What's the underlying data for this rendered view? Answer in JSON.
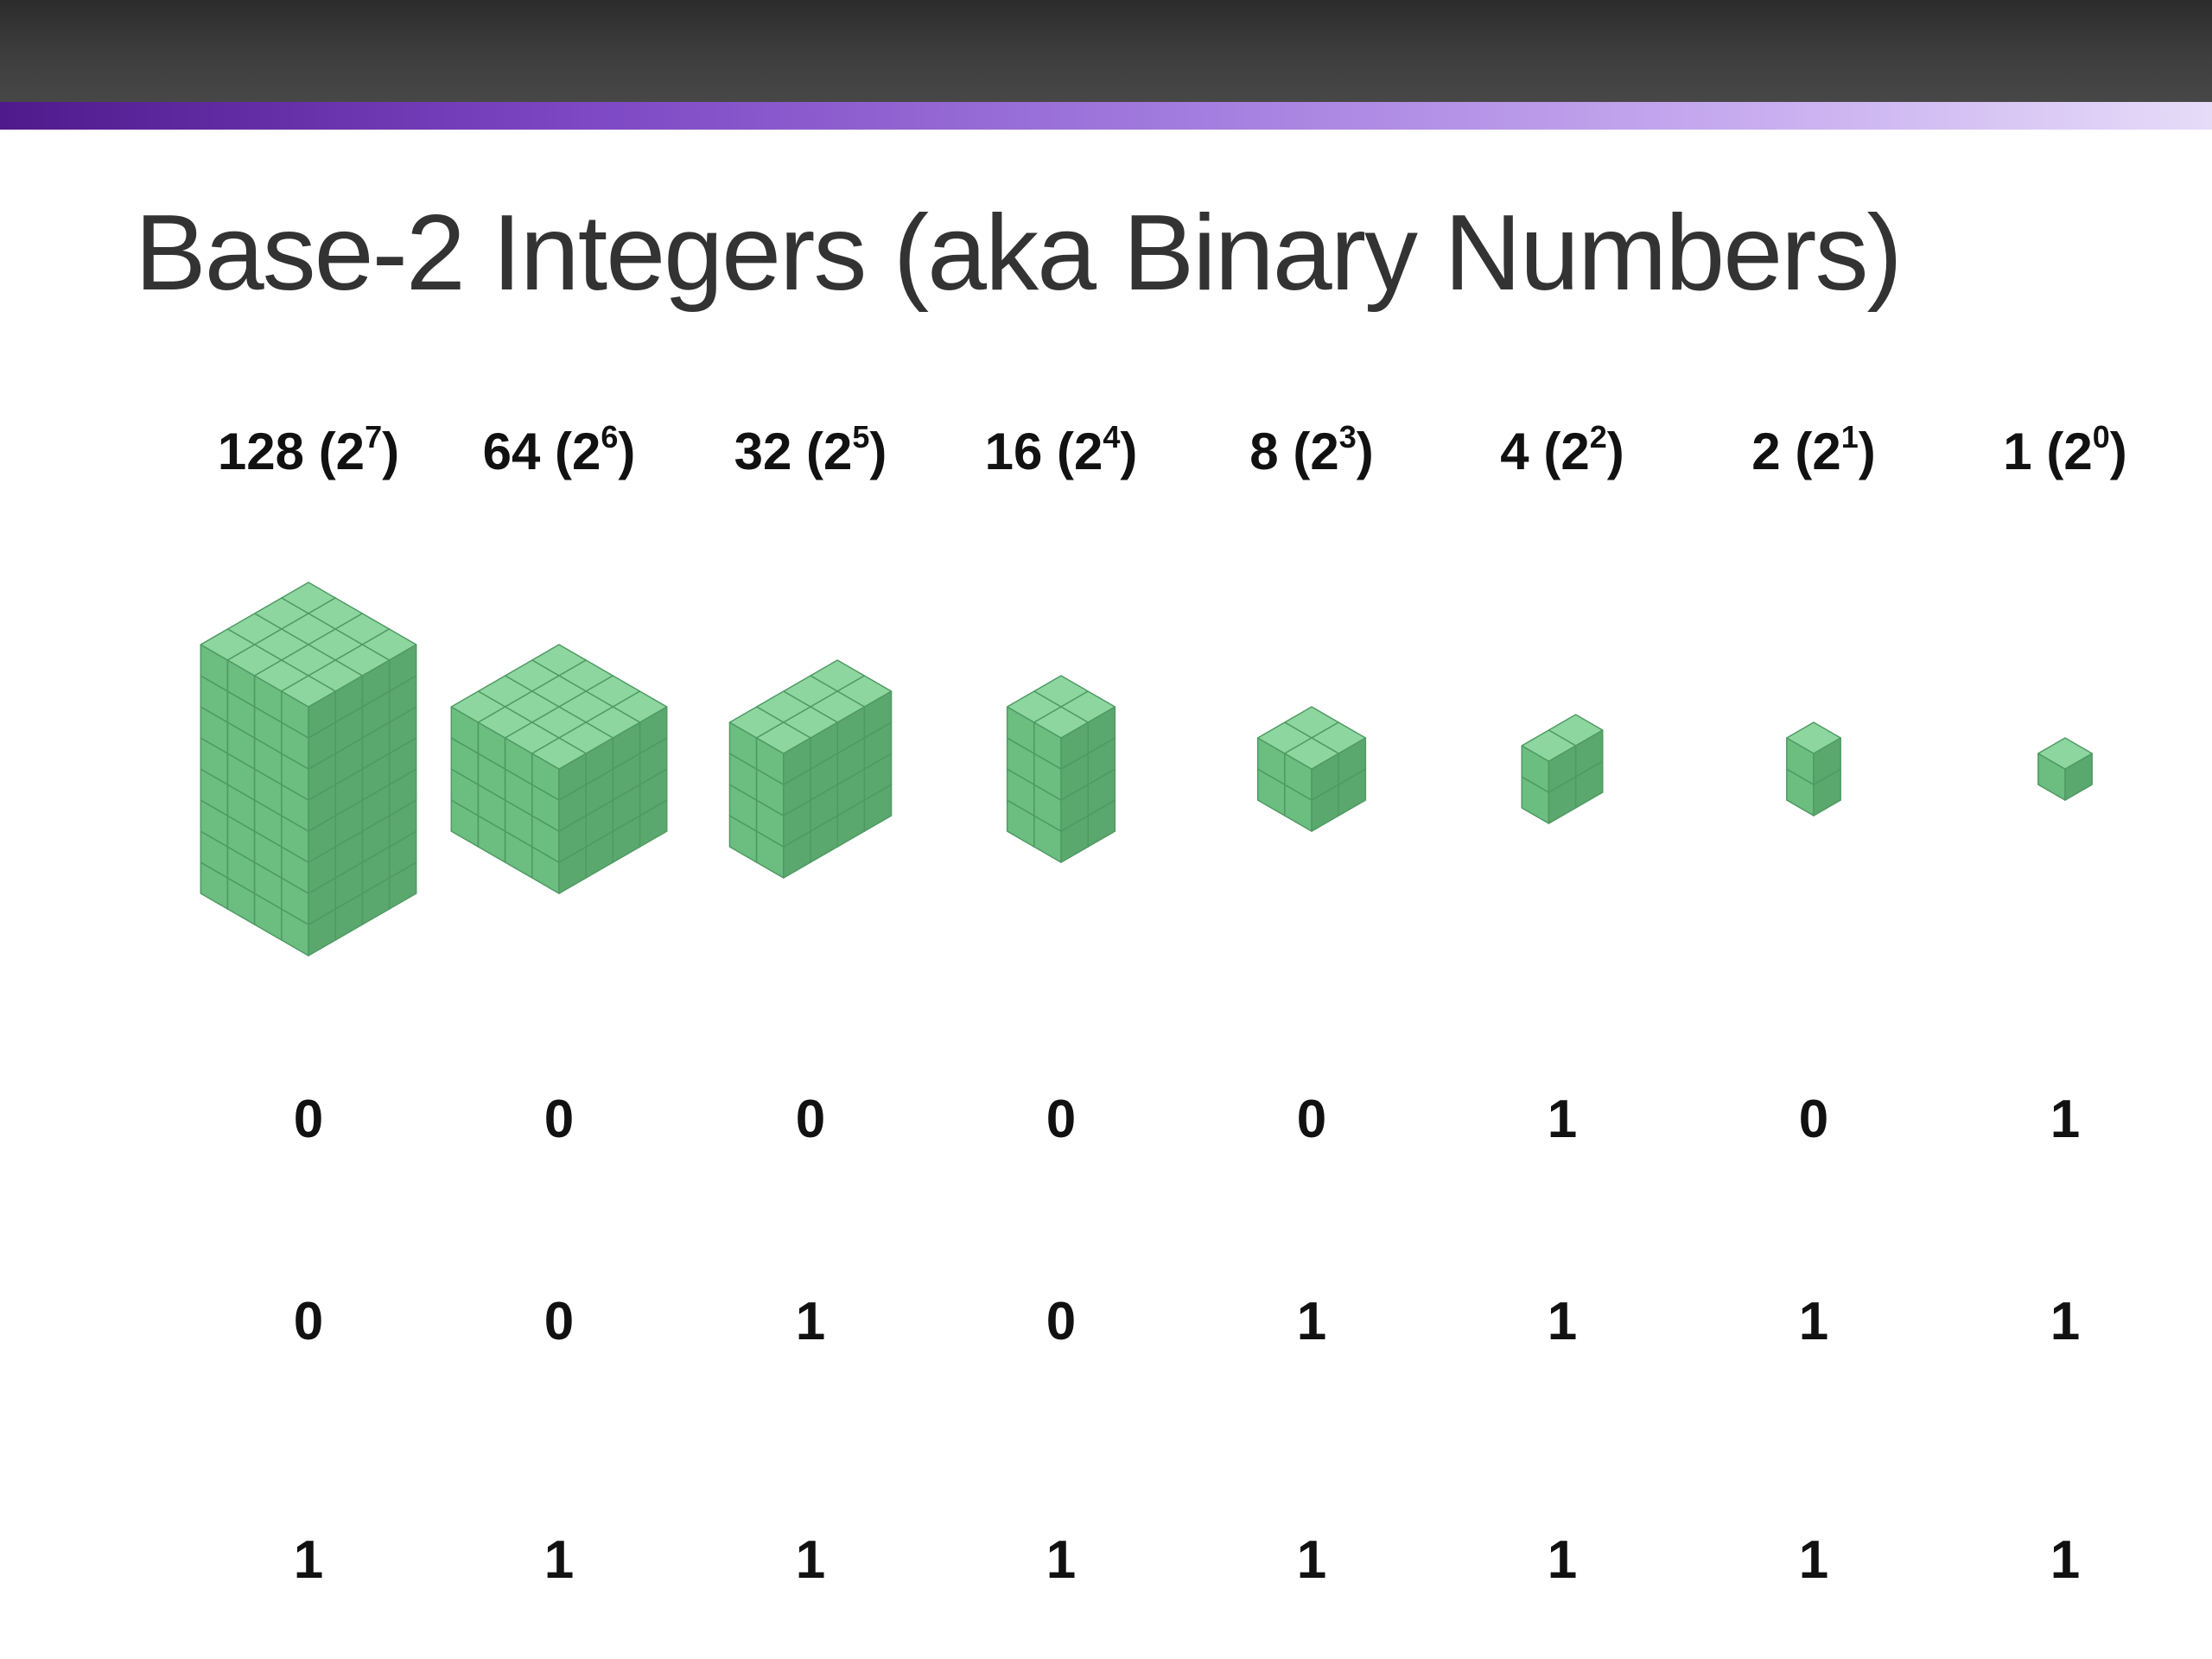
{
  "slide": {
    "title": "Base-2 Integers (aka Binary Numbers)"
  },
  "columns": [
    {
      "value": "128",
      "exp": "7"
    },
    {
      "value": "64",
      "exp": "6"
    },
    {
      "value": "32",
      "exp": "5"
    },
    {
      "value": "16",
      "exp": "4"
    },
    {
      "value": "8",
      "exp": "3"
    },
    {
      "value": "4",
      "exp": "2"
    },
    {
      "value": "2",
      "exp": "1"
    },
    {
      "value": "1",
      "exp": "0"
    }
  ],
  "rows": [
    [
      "0",
      "0",
      "0",
      "0",
      "0",
      "1",
      "0",
      "1"
    ],
    [
      "0",
      "0",
      "1",
      "0",
      "1",
      "1",
      "1",
      "1"
    ],
    [
      "1",
      "1",
      "1",
      "1",
      "1",
      "1",
      "1",
      "1"
    ]
  ],
  "colors": {
    "cube_top": "#8ed6a0",
    "cube_left": "#6bbd80",
    "cube_right": "#5aa86e",
    "cube_edge": "#4f9a63",
    "accent_start": "#4e1a8c",
    "accent_end": "#e6dcf8"
  },
  "blocks": [
    {
      "w": 4,
      "d": 4,
      "h": 8
    },
    {
      "w": 4,
      "d": 4,
      "h": 4
    },
    {
      "w": 2,
      "d": 4,
      "h": 4
    },
    {
      "w": 2,
      "d": 2,
      "h": 4
    },
    {
      "w": 2,
      "d": 2,
      "h": 2
    },
    {
      "w": 1,
      "d": 2,
      "h": 2
    },
    {
      "w": 1,
      "d": 1,
      "h": 2
    },
    {
      "w": 1,
      "d": 1,
      "h": 1
    }
  ]
}
